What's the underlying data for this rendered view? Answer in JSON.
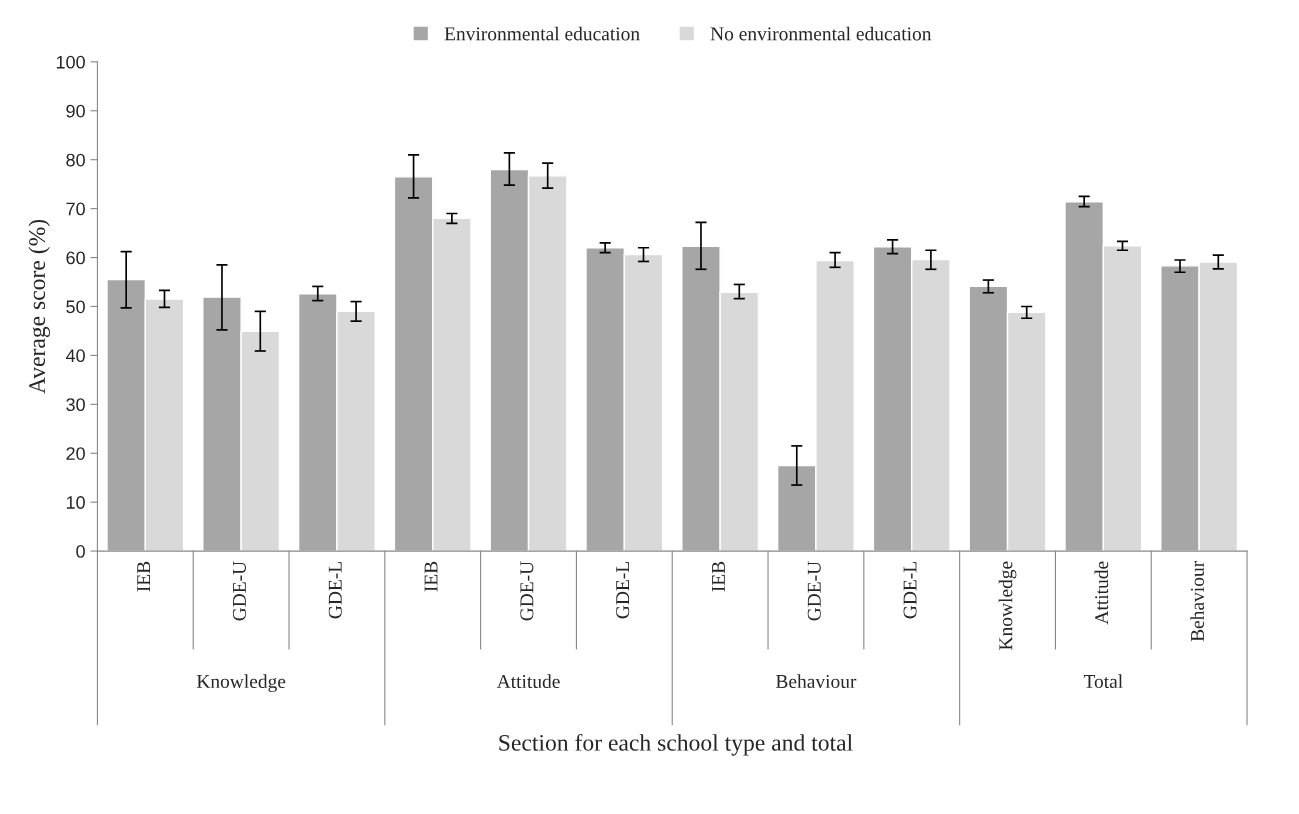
{
  "chart_data": {
    "type": "bar",
    "xlabel": "Section for each school type and total",
    "ylabel": "Average score (%)",
    "categories": [
      "IEB",
      "GDE-U",
      "GDE-L",
      "IEB",
      "GDE-U",
      "GDE-L",
      "IEB",
      "GDE-U",
      "GDE-L",
      "Knowledge",
      "Attitude",
      "Behaviour"
    ],
    "annotations": [
      "Knowledge",
      "Attitude",
      "Behaviour",
      "Total"
    ],
    "series": [
      {
        "name": "Environmental education",
        "color": "#a6a6a6",
        "values": [
          55.5,
          51.9,
          52.6,
          76.5,
          78.0,
          62.0,
          62.3,
          17.5,
          62.2,
          54.1,
          71.4,
          58.3
        ],
        "errors": [
          [
            49.7,
            61.2
          ],
          [
            45.2,
            58.5
          ],
          [
            51.2,
            54.1
          ],
          [
            72.2,
            81.0
          ],
          [
            74.8,
            81.4
          ],
          [
            61.0,
            63.0
          ],
          [
            57.6,
            67.2
          ],
          [
            13.5,
            21.5
          ],
          [
            60.8,
            63.6
          ],
          [
            52.8,
            55.4
          ],
          [
            70.4,
            72.5
          ],
          [
            57.0,
            59.5
          ]
        ]
      },
      {
        "name": "No environmental education",
        "color": "#d9d9d9",
        "values": [
          51.5,
          44.9,
          49.0,
          68.0,
          76.7,
          60.6,
          52.9,
          59.4,
          59.6,
          48.8,
          62.4,
          59.1
        ],
        "errors": [
          [
            49.8,
            53.3
          ],
          [
            40.9,
            49.0
          ],
          [
            47.0,
            51.0
          ],
          [
            67.0,
            69.0
          ],
          [
            74.2,
            79.3
          ],
          [
            59.2,
            62.0
          ],
          [
            51.6,
            54.5
          ],
          [
            58.0,
            61.0
          ],
          [
            57.6,
            61.5
          ],
          [
            47.6,
            50.0
          ],
          [
            61.5,
            63.3
          ],
          [
            57.7,
            60.5
          ]
        ]
      }
    ],
    "ylim": [
      0,
      100
    ],
    "yticks": [
      0,
      10,
      20,
      30,
      40,
      50,
      60,
      70,
      80,
      90,
      100
    ],
    "grid": false,
    "legend": "top"
  }
}
